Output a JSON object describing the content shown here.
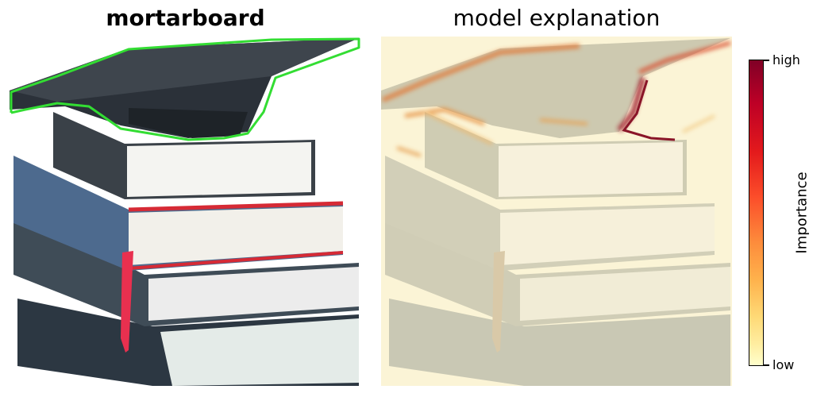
{
  "left_panel": {
    "title": "mortarboard"
  },
  "right_panel": {
    "title": "model explanation"
  },
  "colorbar": {
    "label": "Importance",
    "max_label": "high",
    "min_label": "low",
    "colors": [
      "#800026",
      "#bd0026",
      "#e31a1c",
      "#fc4e2a",
      "#fd8d3c",
      "#feb24c",
      "#fed976",
      "#ffeda0",
      "#ffffcc"
    ]
  },
  "colors": {
    "outline": "#33dd33",
    "highlight": "#a01a2a"
  }
}
